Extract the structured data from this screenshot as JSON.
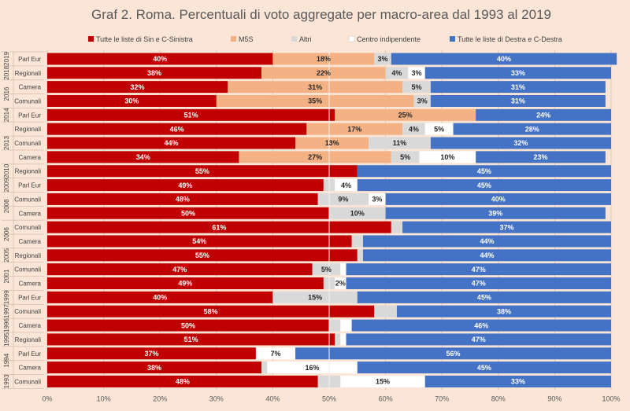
{
  "chart_data": {
    "type": "bar",
    "orientation": "horizontal-stacked-100",
    "title": "Graf 2. Roma. Percentuali di voto aggregate per macro-area dal 1993 al 2019",
    "legend_position": "top",
    "grid": true,
    "xlim": [
      0,
      100
    ],
    "x_ticks": [
      "0%",
      "10%",
      "20%",
      "30%",
      "40%",
      "50%",
      "60%",
      "70%",
      "80%",
      "90%",
      "100%"
    ],
    "series": [
      {
        "name": "Tutte le liste di Sin e C-Sinistra",
        "color": "#c00000",
        "label_color": "#ffffff"
      },
      {
        "name": "M5S",
        "color": "#f4b183",
        "label_color": "#262626"
      },
      {
        "name": "Altri",
        "color": "#d9d9d9",
        "label_color": "#262626"
      },
      {
        "name": "Centro indipendente",
        "color": "#ffffff",
        "label_color": "#262626"
      },
      {
        "name": "Tutte le liste di Destra e C-Destra",
        "color": "#4472c4",
        "label_color": "#ffffff"
      }
    ],
    "rows": [
      {
        "label": "Parl Eur",
        "values": [
          40,
          18,
          3,
          0,
          40
        ],
        "labels": [
          "40%",
          "18%",
          "3%",
          "",
          "40%"
        ]
      },
      {
        "label": "Regionali",
        "values": [
          38,
          22,
          4,
          3,
          33
        ],
        "labels": [
          "38%",
          "22%",
          "4%",
          "3%",
          "33%"
        ]
      },
      {
        "label": "Camera",
        "values": [
          32,
          31,
          5,
          0,
          31
        ],
        "labels": [
          "32%",
          "31%",
          "5%",
          "",
          "31%"
        ]
      },
      {
        "label": "Comunali",
        "values": [
          30,
          35,
          3,
          0,
          31
        ],
        "labels": [
          "30%",
          "35%",
          "3%",
          "",
          "31%"
        ]
      },
      {
        "label": "Parl Eur",
        "values": [
          51,
          25,
          0,
          0,
          24
        ],
        "labels": [
          "51%",
          "25%",
          "",
          "",
          "24%"
        ]
      },
      {
        "label": "Regionali",
        "values": [
          46,
          17,
          4,
          5,
          28
        ],
        "labels": [
          "46%",
          "17%",
          "4%",
          "5%",
          "28%"
        ]
      },
      {
        "label": "Comunali",
        "values": [
          44,
          13,
          11,
          0,
          32
        ],
        "labels": [
          "44%",
          "13%",
          "11%",
          "",
          "32%"
        ]
      },
      {
        "label": "Camera",
        "values": [
          34,
          27,
          5,
          10,
          23
        ],
        "labels": [
          "34%",
          "27%",
          "5%",
          "10%",
          "23%"
        ]
      },
      {
        "label": "Regionali",
        "values": [
          55,
          0,
          0,
          0,
          45
        ],
        "labels": [
          "55%",
          "",
          "",
          "",
          "45%"
        ]
      },
      {
        "label": "Parl Eur",
        "values": [
          49,
          0,
          2,
          4,
          45
        ],
        "labels": [
          "49%",
          "",
          "",
          "4%",
          "45%"
        ]
      },
      {
        "label": "Comunali",
        "values": [
          48,
          0,
          9,
          3,
          40
        ],
        "labels": [
          "48%",
          "",
          "9%",
          "3%",
          "40%"
        ]
      },
      {
        "label": "Camera",
        "values": [
          50,
          0,
          10,
          0,
          39
        ],
        "labels": [
          "50%",
          "",
          "10%",
          "",
          "39%"
        ]
      },
      {
        "label": "Comunali",
        "values": [
          61,
          0,
          2,
          0,
          37
        ],
        "labels": [
          "61%",
          "",
          "",
          "",
          "37%"
        ]
      },
      {
        "label": "Camera",
        "values": [
          54,
          0,
          2,
          0,
          44
        ],
        "labels": [
          "54%",
          "",
          "",
          "",
          "44%"
        ]
      },
      {
        "label": "Regionali",
        "values": [
          55,
          0,
          1,
          0,
          44
        ],
        "labels": [
          "55%",
          "",
          "",
          "",
          "44%"
        ]
      },
      {
        "label": "Comunali",
        "values": [
          47,
          0,
          5,
          1,
          47
        ],
        "labels": [
          "47%",
          "",
          "5%",
          "",
          "47%"
        ]
      },
      {
        "label": "Camera",
        "values": [
          49,
          0,
          2,
          2,
          47
        ],
        "labels": [
          "49%",
          "",
          "",
          "2%",
          "47%"
        ]
      },
      {
        "label": "Parl Eur",
        "values": [
          40,
          0,
          15,
          0,
          45
        ],
        "labels": [
          "40%",
          "",
          "15%",
          "",
          "45%"
        ]
      },
      {
        "label": "Comunali",
        "values": [
          58,
          0,
          4,
          0,
          38
        ],
        "labels": [
          "58%",
          "",
          "",
          "",
          "38%"
        ]
      },
      {
        "label": "Camera",
        "values": [
          50,
          0,
          2,
          2,
          46
        ],
        "labels": [
          "50%",
          "",
          "",
          "",
          "46%"
        ]
      },
      {
        "label": "Regionali",
        "values": [
          51,
          0,
          1,
          1,
          47
        ],
        "labels": [
          "51%",
          "",
          "",
          "",
          "47%"
        ]
      },
      {
        "label": "Parl Eur",
        "values": [
          37,
          0,
          0,
          7,
          56
        ],
        "labels": [
          "37%",
          "",
          "",
          "7%",
          "56%"
        ]
      },
      {
        "label": "Camera",
        "values": [
          38,
          0,
          1,
          16,
          45
        ],
        "labels": [
          "38%",
          "",
          "",
          "16%",
          "45%"
        ]
      },
      {
        "label": "Comunali",
        "values": [
          48,
          0,
          4,
          15,
          33
        ],
        "labels": [
          "48%",
          "",
          "",
          "15%",
          "33%"
        ]
      }
    ],
    "year_groups": [
      {
        "label": "2019",
        "rows": [
          0,
          0
        ]
      },
      {
        "label": "2018",
        "rows": [
          1,
          1
        ]
      },
      {
        "label": "2016",
        "rows": [
          2,
          3
        ]
      },
      {
        "label": "2014",
        "rows": [
          4,
          4
        ]
      },
      {
        "label": "2013",
        "rows": [
          5,
          7
        ]
      },
      {
        "label": "2010",
        "rows": [
          8,
          8
        ]
      },
      {
        "label": "2009",
        "rows": [
          9,
          9
        ]
      },
      {
        "label": "2008",
        "rows": [
          10,
          11
        ]
      },
      {
        "label": "2006",
        "rows": [
          12,
          13
        ]
      },
      {
        "label": "2005",
        "rows": [
          14,
          14
        ]
      },
      {
        "label": "2001",
        "rows": [
          15,
          16
        ]
      },
      {
        "label": "1999",
        "rows": [
          17,
          17
        ]
      },
      {
        "label": "1997",
        "rows": [
          18,
          18
        ]
      },
      {
        "label": "1996",
        "rows": [
          19,
          19
        ]
      },
      {
        "label": "1995",
        "rows": [
          20,
          20
        ]
      },
      {
        "label": "1994",
        "rows": [
          21,
          22
        ]
      },
      {
        "label": "1993",
        "rows": [
          23,
          23
        ]
      }
    ]
  }
}
